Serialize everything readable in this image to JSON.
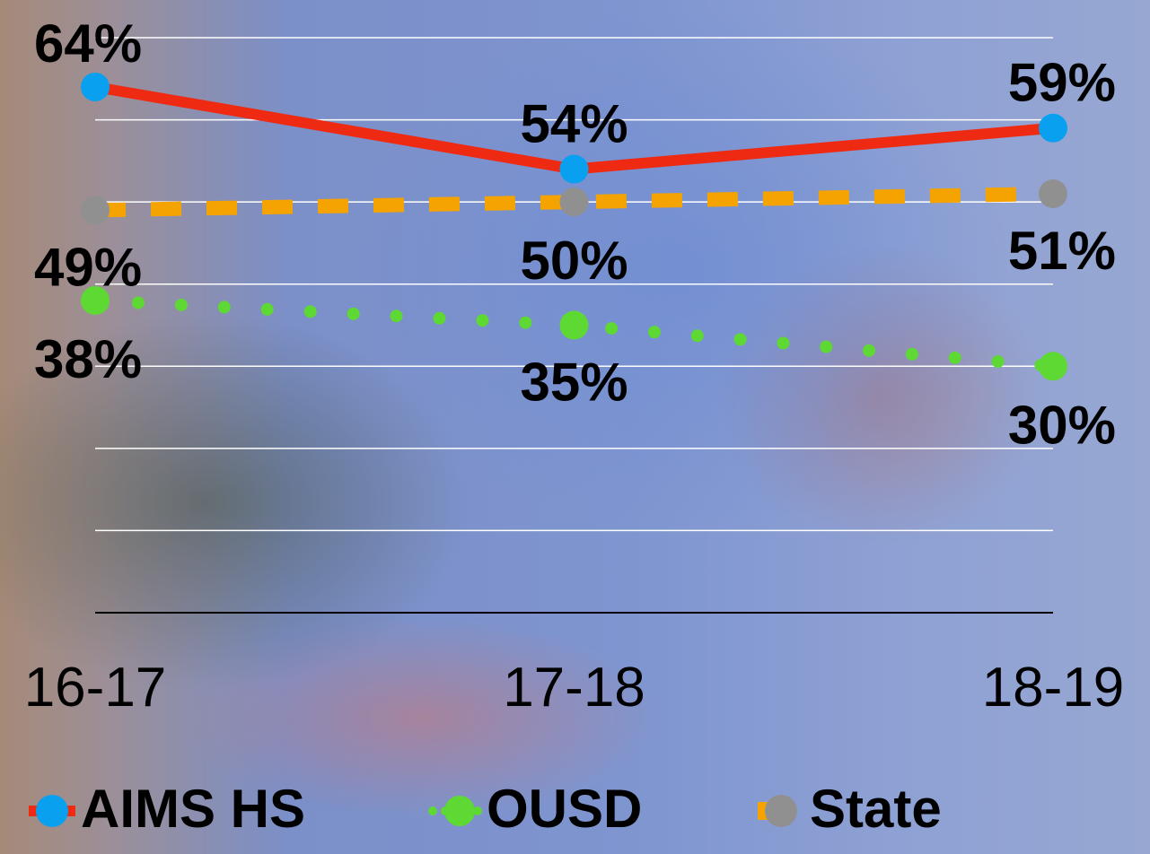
{
  "chart_data": {
    "type": "line",
    "categories": [
      "16-17",
      "17-18",
      "18-19"
    ],
    "ylim": [
      0,
      70
    ],
    "grid": true,
    "legend_position": "bottom",
    "series": [
      {
        "name": "AIMS HS",
        "values": [
          64,
          54,
          59
        ],
        "labels": [
          "64%",
          "54%",
          "59%"
        ],
        "line_color": "#ee2a12",
        "marker_color": "#0aa0f0",
        "line_style": "solid"
      },
      {
        "name": "State",
        "values": [
          49,
          50,
          51
        ],
        "labels": [
          "49%",
          "50%",
          "51%"
        ],
        "line_color": "#f5a300",
        "marker_color": "#909090",
        "line_style": "dashed"
      },
      {
        "name": "OUSD",
        "values": [
          38,
          35,
          30
        ],
        "labels": [
          "38%",
          "35%",
          "30%"
        ],
        "line_color": "#5ed832",
        "marker_color": "#5ed832",
        "line_style": "dotted"
      }
    ]
  },
  "legend": {
    "items": [
      {
        "label": "AIMS HS",
        "icon": "red-line-blue-dot"
      },
      {
        "label": "OUSD",
        "icon": "green-dotted-line-green-dot"
      },
      {
        "label": "State",
        "icon": "orange-dash-gray-dot"
      }
    ]
  }
}
